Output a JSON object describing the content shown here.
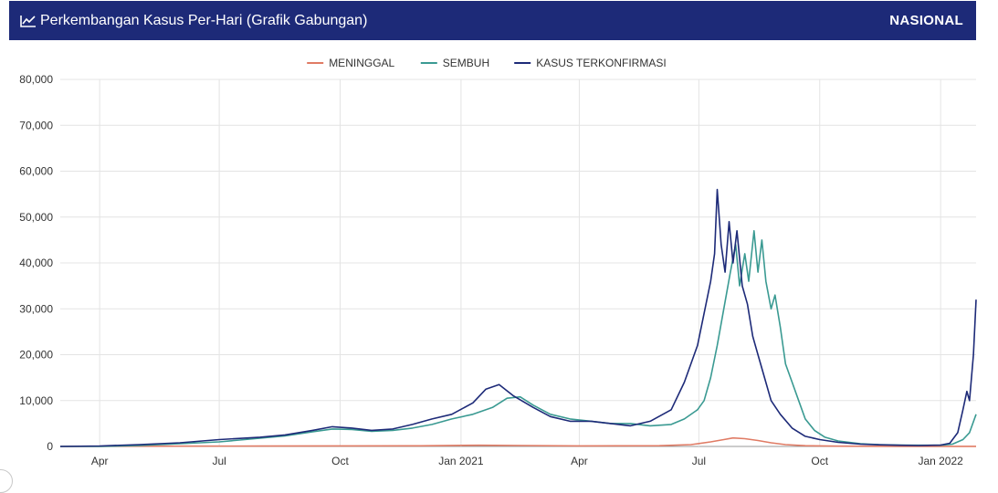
{
  "header": {
    "title": "Perkembangan Kasus Per-Hari (Grafik Gabungan)",
    "icon": "line-chart-icon",
    "badge": "NASIONAL",
    "background": "#1d2a78"
  },
  "chart_data": {
    "type": "line",
    "title": "Perkembangan Kasus Per-Hari (Grafik Gabungan)",
    "xlabel": "",
    "ylabel": "",
    "ylim": [
      0,
      80000
    ],
    "yticks": [
      0,
      10000,
      20000,
      30000,
      40000,
      50000,
      60000,
      70000,
      80000
    ],
    "ytick_labels": [
      "0",
      "10,000",
      "20,000",
      "30,000",
      "40,000",
      "50,000",
      "60,000",
      "70,000",
      "80,000"
    ],
    "xlim": [
      "2020-03-02",
      "2022-01-28"
    ],
    "xticks": [
      {
        "date": "2020-04-01",
        "label": "Apr"
      },
      {
        "date": "2020-07-01",
        "label": "Jul"
      },
      {
        "date": "2020-10-01",
        "label": "Oct"
      },
      {
        "date": "2021-01-01",
        "label": "Jan 2021"
      },
      {
        "date": "2021-04-01",
        "label": "Apr"
      },
      {
        "date": "2021-07-01",
        "label": "Jul"
      },
      {
        "date": "2021-10-01",
        "label": "Oct"
      },
      {
        "date": "2022-01-01",
        "label": "Jan 2022"
      }
    ],
    "grid": true,
    "legend": "top-center",
    "series": [
      {
        "name": "MENINGGAL",
        "color": "#e07b64",
        "points": [
          [
            "2020-03-02",
            0
          ],
          [
            "2020-04-15",
            40
          ],
          [
            "2020-06-01",
            50
          ],
          [
            "2020-08-01",
            70
          ],
          [
            "2020-10-01",
            110
          ],
          [
            "2020-12-01",
            140
          ],
          [
            "2021-01-15",
            250
          ],
          [
            "2021-02-15",
            200
          ],
          [
            "2021-04-01",
            120
          ],
          [
            "2021-06-01",
            150
          ],
          [
            "2021-06-25",
            400
          ],
          [
            "2021-07-10",
            1000
          ],
          [
            "2021-07-20",
            1500
          ],
          [
            "2021-07-27",
            1850
          ],
          [
            "2021-08-05",
            1700
          ],
          [
            "2021-08-15",
            1300
          ],
          [
            "2021-08-25",
            800
          ],
          [
            "2021-09-05",
            400
          ],
          [
            "2021-09-20",
            150
          ],
          [
            "2021-10-15",
            50
          ],
          [
            "2021-12-01",
            10
          ],
          [
            "2022-01-28",
            10
          ]
        ]
      },
      {
        "name": "SEMBUH",
        "color": "#3a9a92",
        "points": [
          [
            "2020-03-02",
            0
          ],
          [
            "2020-04-01",
            0
          ],
          [
            "2020-05-01",
            200
          ],
          [
            "2020-06-01",
            600
          ],
          [
            "2020-07-01",
            1000
          ],
          [
            "2020-08-01",
            1800
          ],
          [
            "2020-08-20",
            2300
          ],
          [
            "2020-09-10",
            3200
          ],
          [
            "2020-09-25",
            3800
          ],
          [
            "2020-10-10",
            3700
          ],
          [
            "2020-10-25",
            3300
          ],
          [
            "2020-11-10",
            3500
          ],
          [
            "2020-11-25",
            4000
          ],
          [
            "2020-12-10",
            4800
          ],
          [
            "2020-12-25",
            6000
          ],
          [
            "2021-01-10",
            7000
          ],
          [
            "2021-01-25",
            8500
          ],
          [
            "2021-02-05",
            10500
          ],
          [
            "2021-02-15",
            10800
          ],
          [
            "2021-02-25",
            9000
          ],
          [
            "2021-03-10",
            7000
          ],
          [
            "2021-03-25",
            6000
          ],
          [
            "2021-04-10",
            5500
          ],
          [
            "2021-04-25",
            5000
          ],
          [
            "2021-05-10",
            5000
          ],
          [
            "2021-05-25",
            4500
          ],
          [
            "2021-06-10",
            4800
          ],
          [
            "2021-06-20",
            6000
          ],
          [
            "2021-06-30",
            8000
          ],
          [
            "2021-07-05",
            10000
          ],
          [
            "2021-07-10",
            15000
          ],
          [
            "2021-07-15",
            22000
          ],
          [
            "2021-07-20",
            30000
          ],
          [
            "2021-07-25",
            38000
          ],
          [
            "2021-07-29",
            44000
          ],
          [
            "2021-08-01",
            35000
          ],
          [
            "2021-08-05",
            42000
          ],
          [
            "2021-08-08",
            36000
          ],
          [
            "2021-08-12",
            47000
          ],
          [
            "2021-08-15",
            38000
          ],
          [
            "2021-08-18",
            45000
          ],
          [
            "2021-08-21",
            36000
          ],
          [
            "2021-08-25",
            30000
          ],
          [
            "2021-08-28",
            33000
          ],
          [
            "2021-09-01",
            26000
          ],
          [
            "2021-09-05",
            18000
          ],
          [
            "2021-09-10",
            14000
          ],
          [
            "2021-09-15",
            10000
          ],
          [
            "2021-09-20",
            6000
          ],
          [
            "2021-09-27",
            3500
          ],
          [
            "2021-10-05",
            2000
          ],
          [
            "2021-10-15",
            1200
          ],
          [
            "2021-11-01",
            600
          ],
          [
            "2021-11-15",
            400
          ],
          [
            "2021-12-01",
            300
          ],
          [
            "2021-12-15",
            250
          ],
          [
            "2022-01-01",
            250
          ],
          [
            "2022-01-10",
            500
          ],
          [
            "2022-01-18",
            1500
          ],
          [
            "2022-01-23",
            3000
          ],
          [
            "2022-01-28",
            7000
          ]
        ]
      },
      {
        "name": "KASUS TERKONFIRMASI",
        "color": "#1d2a78",
        "points": [
          [
            "2020-03-02",
            0
          ],
          [
            "2020-04-01",
            100
          ],
          [
            "2020-05-01",
            400
          ],
          [
            "2020-06-01",
            800
          ],
          [
            "2020-07-01",
            1500
          ],
          [
            "2020-08-01",
            2000
          ],
          [
            "2020-08-20",
            2500
          ],
          [
            "2020-09-10",
            3500
          ],
          [
            "2020-09-25",
            4300
          ],
          [
            "2020-10-10",
            4000
          ],
          [
            "2020-10-25",
            3500
          ],
          [
            "2020-11-10",
            3800
          ],
          [
            "2020-11-25",
            4800
          ],
          [
            "2020-12-10",
            6000
          ],
          [
            "2020-12-25",
            7000
          ],
          [
            "2021-01-10",
            9500
          ],
          [
            "2021-01-20",
            12500
          ],
          [
            "2021-01-30",
            13500
          ],
          [
            "2021-02-10",
            11000
          ],
          [
            "2021-02-25",
            8500
          ],
          [
            "2021-03-10",
            6500
          ],
          [
            "2021-03-25",
            5500
          ],
          [
            "2021-04-10",
            5500
          ],
          [
            "2021-04-25",
            5000
          ],
          [
            "2021-05-10",
            4500
          ],
          [
            "2021-05-25",
            5500
          ],
          [
            "2021-06-10",
            8000
          ],
          [
            "2021-06-20",
            14000
          ],
          [
            "2021-06-30",
            22000
          ],
          [
            "2021-07-05",
            29000
          ],
          [
            "2021-07-10",
            36000
          ],
          [
            "2021-07-13",
            42000
          ],
          [
            "2021-07-15",
            56000
          ],
          [
            "2021-07-18",
            44000
          ],
          [
            "2021-07-21",
            38000
          ],
          [
            "2021-07-24",
            49000
          ],
          [
            "2021-07-27",
            40000
          ],
          [
            "2021-07-30",
            47000
          ],
          [
            "2021-08-03",
            35000
          ],
          [
            "2021-08-07",
            31000
          ],
          [
            "2021-08-11",
            24000
          ],
          [
            "2021-08-15",
            20000
          ],
          [
            "2021-08-20",
            15000
          ],
          [
            "2021-08-25",
            10000
          ],
          [
            "2021-09-01",
            7000
          ],
          [
            "2021-09-10",
            4000
          ],
          [
            "2021-09-20",
            2200
          ],
          [
            "2021-10-01",
            1500
          ],
          [
            "2021-10-15",
            900
          ],
          [
            "2021-11-01",
            500
          ],
          [
            "2021-11-15",
            350
          ],
          [
            "2021-12-01",
            250
          ],
          [
            "2021-12-15",
            200
          ],
          [
            "2022-01-01",
            300
          ],
          [
            "2022-01-08",
            700
          ],
          [
            "2022-01-14",
            3000
          ],
          [
            "2022-01-18",
            8000
          ],
          [
            "2022-01-21",
            12000
          ],
          [
            "2022-01-23",
            10000
          ],
          [
            "2022-01-26",
            20000
          ],
          [
            "2022-01-28",
            32000
          ]
        ]
      }
    ]
  }
}
